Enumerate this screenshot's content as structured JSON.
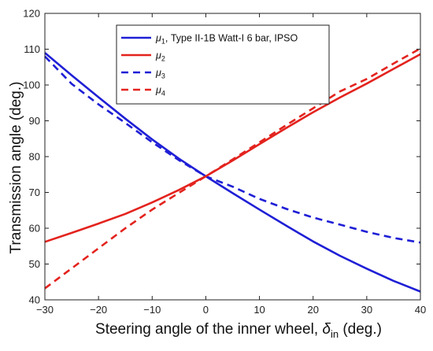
{
  "chart_data": {
    "type": "line",
    "title": "",
    "xlabel": "Steering angle of the inner wheel, δin (deg.)",
    "xlabel_parts": {
      "main": "Steering angle of the inner wheel, ",
      "symbol": "δ",
      "sub": "in",
      "unit": " (deg.)"
    },
    "ylabel": "Transmission angle (deg.)",
    "xlim": [
      -30,
      40
    ],
    "ylim": [
      40,
      120
    ],
    "xticks": [
      -30,
      -20,
      -10,
      0,
      10,
      20,
      30,
      40
    ],
    "yticks": [
      40,
      50,
      60,
      70,
      80,
      90,
      100,
      110,
      120
    ],
    "xtick_labels": [
      "−30",
      "−20",
      "−10",
      "0",
      "10",
      "20",
      "30",
      "40"
    ],
    "ytick_labels": [
      "40",
      "50",
      "60",
      "70",
      "80",
      "90",
      "100",
      "110",
      "120"
    ],
    "grid": false,
    "legend_position": "top-right",
    "series": [
      {
        "name": "μ1, Type II-1B Watt-I 6 bar, IPSO",
        "legend_symbol": "μ",
        "legend_sub": "1",
        "legend_suffix": ", Type II-1B Watt-I 6 bar, IPSO",
        "color": "#1f1fd6",
        "style": "solid",
        "x": [
          -30,
          -25,
          -20,
          -15,
          -10,
          -5,
          0,
          5,
          10,
          15,
          20,
          25,
          30,
          35,
          40
        ],
        "y": [
          109,
          102.7,
          96.6,
          90.6,
          84.8,
          79.4,
          74.5,
          69.8,
          65.2,
          60.7,
          56.3,
          52.3,
          48.7,
          45.3,
          42.3
        ]
      },
      {
        "name": "μ2",
        "legend_symbol": "μ",
        "legend_sub": "2",
        "legend_suffix": "",
        "color": "#e3231e",
        "style": "solid",
        "x": [
          -30,
          -25,
          -20,
          -15,
          -10,
          -5,
          0,
          5,
          10,
          15,
          20,
          25,
          30,
          35,
          40
        ],
        "y": [
          56.2,
          58.7,
          61.3,
          64.0,
          67.2,
          70.7,
          74.5,
          78.9,
          83.5,
          88.0,
          92.4,
          96.5,
          100.4,
          104.5,
          108.6
        ]
      },
      {
        "name": "μ3",
        "legend_symbol": "μ",
        "legend_sub": "3",
        "legend_suffix": "",
        "color": "#1f1fd6",
        "style": "dashed",
        "x": [
          -30,
          -25,
          -20,
          -15,
          -10,
          -5,
          0,
          5,
          10,
          15,
          20,
          25,
          30,
          35,
          40
        ],
        "y": [
          108,
          100.3,
          94.6,
          89.4,
          84.0,
          79.0,
          74.5,
          71.6,
          68.2,
          65.4,
          63.0,
          61.0,
          59.0,
          57.3,
          56.0
        ]
      },
      {
        "name": "μ4",
        "legend_symbol": "μ",
        "legend_sub": "4",
        "legend_suffix": "",
        "color": "#e3231e",
        "style": "dashed",
        "x": [
          -30,
          -25,
          -20,
          -15,
          -10,
          -5,
          0,
          5,
          10,
          15,
          20,
          25,
          30,
          35,
          40
        ],
        "y": [
          43.2,
          48.8,
          54.4,
          60.0,
          65.2,
          69.9,
          74.5,
          79.2,
          84.0,
          88.8,
          93.5,
          98.2,
          101.7,
          106.0,
          110.2
        ]
      }
    ]
  }
}
